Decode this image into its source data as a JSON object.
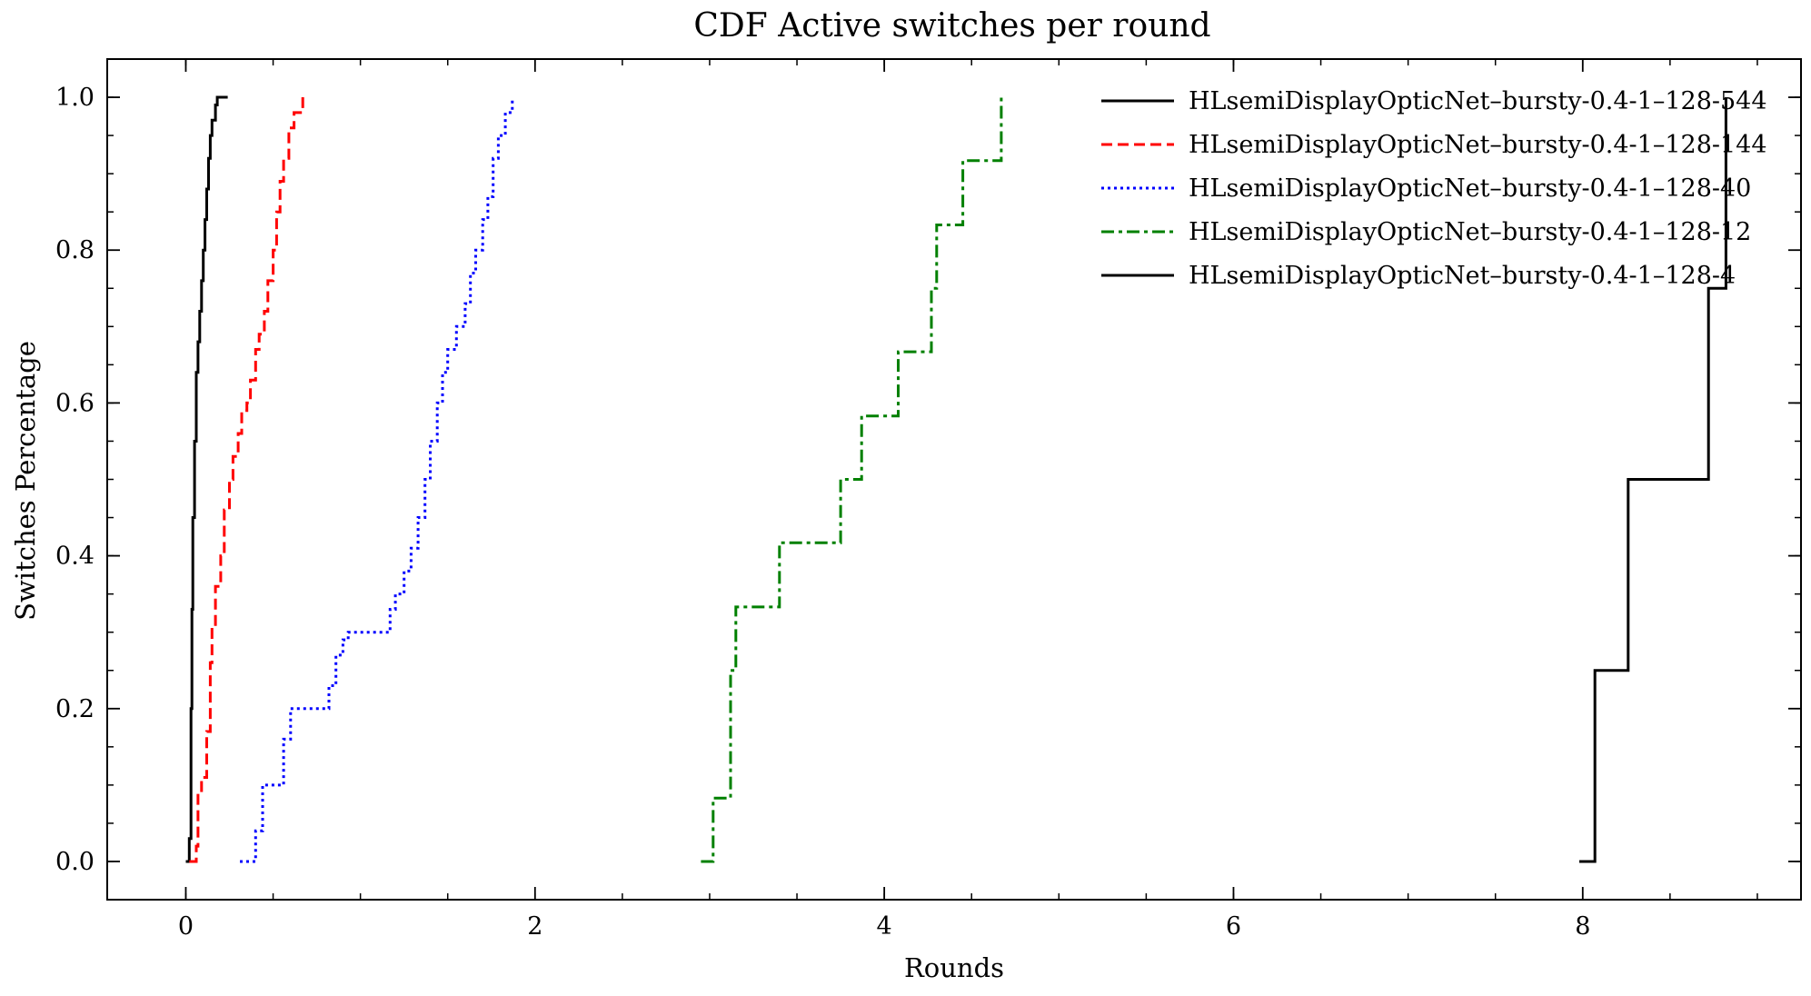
{
  "chart_data": {
    "type": "line",
    "title": "CDF Active switches per round",
    "xlabel": "Rounds",
    "ylabel": "Switches Percentage",
    "xlim": [
      -0.45,
      9.25
    ],
    "ylim": [
      -0.05,
      1.05
    ],
    "xticks": [
      0,
      2,
      4,
      6,
      8
    ],
    "yticks": [
      0.0,
      0.2,
      0.4,
      0.6,
      0.8,
      1.0
    ],
    "x_tick_labels": [
      "0",
      "2",
      "4",
      "6",
      "8"
    ],
    "y_tick_labels": [
      "0.0",
      "0.2",
      "0.4",
      "0.6",
      "0.8",
      "1.0"
    ],
    "grid": false,
    "legend_position": "top-right",
    "series": [
      {
        "name": "HLsemiDisplayOpticNet–bursty-0.4-1–128-544",
        "color": "#000000",
        "style": "solid",
        "x": [
          0.0,
          0.02,
          0.03,
          0.035,
          0.04,
          0.05,
          0.06,
          0.07,
          0.08,
          0.09,
          0.1,
          0.11,
          0.12,
          0.13,
          0.14,
          0.15,
          0.17,
          0.18,
          0.2,
          0.24
        ],
        "y": [
          0.0,
          0.03,
          0.2,
          0.33,
          0.45,
          0.55,
          0.64,
          0.68,
          0.72,
          0.76,
          0.8,
          0.84,
          0.88,
          0.92,
          0.95,
          0.97,
          0.99,
          1.0,
          1.0,
          1.0
        ]
      },
      {
        "name": "HLsemiDisplayOpticNet–bursty-0.4-1–128-144",
        "color": "#ff0000",
        "style": "dashed",
        "x": [
          0.02,
          0.06,
          0.07,
          0.09,
          0.12,
          0.14,
          0.15,
          0.17,
          0.2,
          0.22,
          0.25,
          0.27,
          0.3,
          0.32,
          0.35,
          0.37,
          0.4,
          0.42,
          0.45,
          0.47,
          0.5,
          0.52,
          0.54,
          0.56,
          0.59,
          0.62,
          0.67
        ],
        "y": [
          0.0,
          0.02,
          0.09,
          0.11,
          0.17,
          0.26,
          0.31,
          0.36,
          0.4,
          0.46,
          0.5,
          0.53,
          0.56,
          0.59,
          0.6,
          0.63,
          0.67,
          0.69,
          0.72,
          0.76,
          0.8,
          0.85,
          0.89,
          0.92,
          0.96,
          0.98,
          1.0
        ]
      },
      {
        "name": "HLsemiDisplayOpticNet–bursty-0.4-1–128-40",
        "color": "#0000ff",
        "style": "dotted",
        "x": [
          0.31,
          0.4,
          0.44,
          0.56,
          0.6,
          0.82,
          0.86,
          0.9,
          0.93,
          1.17,
          1.2,
          1.25,
          1.29,
          1.33,
          1.37,
          1.4,
          1.44,
          1.47,
          1.5,
          1.55,
          1.6,
          1.63,
          1.66,
          1.7,
          1.73,
          1.76,
          1.79,
          1.83,
          1.87
        ],
        "y": [
          0.0,
          0.04,
          0.1,
          0.16,
          0.2,
          0.23,
          0.27,
          0.29,
          0.3,
          0.33,
          0.35,
          0.38,
          0.41,
          0.45,
          0.5,
          0.55,
          0.6,
          0.64,
          0.67,
          0.7,
          0.73,
          0.77,
          0.8,
          0.84,
          0.87,
          0.92,
          0.95,
          0.98,
          1.0
        ]
      },
      {
        "name": "HLsemiDisplayOpticNet–bursty-0.4-1–128-12",
        "color": "#008000",
        "style": "dashdot",
        "x": [
          2.95,
          3.02,
          3.12,
          3.15,
          3.4,
          3.75,
          3.87,
          4.08,
          4.27,
          4.3,
          4.45,
          4.67
        ],
        "y": [
          0.0,
          0.083,
          0.25,
          0.333,
          0.417,
          0.5,
          0.583,
          0.667,
          0.75,
          0.833,
          0.917,
          1.0
        ]
      },
      {
        "name": "HLsemiDisplayOpticNet–bursty-0.4-1–128-4",
        "color": "#000000",
        "style": "solid",
        "x": [
          7.98,
          8.07,
          8.26,
          8.72,
          8.82
        ],
        "y": [
          0.0,
          0.25,
          0.5,
          0.75,
          1.0
        ]
      }
    ]
  }
}
